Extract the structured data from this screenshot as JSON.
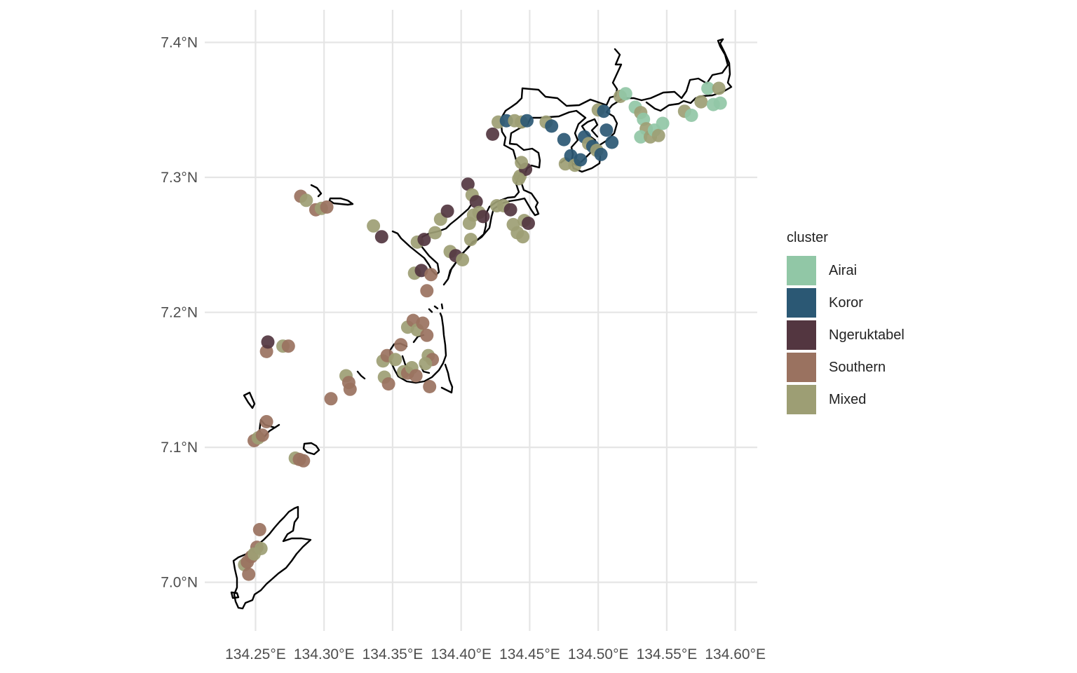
{
  "map": {
    "x_ticks": [
      "134.25°E",
      "134.30°E",
      "134.35°E",
      "134.40°E",
      "134.45°E",
      "134.50°E",
      "134.55°E",
      "134.60°E"
    ],
    "x_tick_values": [
      134.25,
      134.3,
      134.35,
      134.4,
      134.45,
      134.5,
      134.55,
      134.6
    ],
    "y_ticks": [
      "7.4°N",
      "7.3°N",
      "7.2°N",
      "7.1°N",
      "7.0°N"
    ],
    "y_tick_values": [
      7.4,
      7.3,
      7.2,
      7.1,
      7.0
    ],
    "xlim": [
      134.215,
      134.615
    ],
    "ylim": [
      6.965,
      7.42
    ]
  },
  "legend": {
    "title": "cluster",
    "items": [
      {
        "label": "Airai",
        "color": "#91c7a6"
      },
      {
        "label": "Koror",
        "color": "#2b5874"
      },
      {
        "label": "Ngeruktabel",
        "color": "#533640"
      },
      {
        "label": "Southern",
        "color": "#9a7260"
      },
      {
        "label": "Mixed",
        "color": "#9d9e74"
      }
    ]
  },
  "sites": [
    {
      "lon": 134.242,
      "lat": 7.013,
      "c": "Mixed"
    },
    {
      "lon": 134.244,
      "lat": 7.015,
      "c": "Southern"
    },
    {
      "lon": 134.247,
      "lat": 7.019,
      "c": "Southern"
    },
    {
      "lon": 134.251,
      "lat": 7.026,
      "c": "Southern"
    },
    {
      "lon": 134.254,
      "lat": 7.025,
      "c": "Mixed"
    },
    {
      "lon": 134.253,
      "lat": 7.039,
      "c": "Southern"
    },
    {
      "lon": 134.245,
      "lat": 7.006,
      "c": "Southern"
    },
    {
      "lon": 134.249,
      "lat": 7.021,
      "c": "Mixed"
    },
    {
      "lon": 134.249,
      "lat": 7.105,
      "c": "Southern"
    },
    {
      "lon": 134.252,
      "lat": 7.107,
      "c": "Mixed"
    },
    {
      "lon": 134.255,
      "lat": 7.109,
      "c": "Southern"
    },
    {
      "lon": 134.258,
      "lat": 7.119,
      "c": "Southern"
    },
    {
      "lon": 134.279,
      "lat": 7.092,
      "c": "Mixed"
    },
    {
      "lon": 134.282,
      "lat": 7.091,
      "c": "Southern"
    },
    {
      "lon": 134.285,
      "lat": 7.09,
      "c": "Southern"
    },
    {
      "lon": 134.258,
      "lat": 7.171,
      "c": "Southern"
    },
    {
      "lon": 134.259,
      "lat": 7.178,
      "c": "Ngeruktabel"
    },
    {
      "lon": 134.27,
      "lat": 7.175,
      "c": "Mixed"
    },
    {
      "lon": 134.274,
      "lat": 7.175,
      "c": "Southern"
    },
    {
      "lon": 134.305,
      "lat": 7.136,
      "c": "Southern"
    },
    {
      "lon": 134.316,
      "lat": 7.153,
      "c": "Mixed"
    },
    {
      "lon": 134.318,
      "lat": 7.148,
      "c": "Southern"
    },
    {
      "lon": 134.319,
      "lat": 7.143,
      "c": "Southern"
    },
    {
      "lon": 134.343,
      "lat": 7.164,
      "c": "Mixed"
    },
    {
      "lon": 134.346,
      "lat": 7.168,
      "c": "Southern"
    },
    {
      "lon": 134.344,
      "lat": 7.152,
      "c": "Mixed"
    },
    {
      "lon": 134.347,
      "lat": 7.147,
      "c": "Southern"
    },
    {
      "lon": 134.352,
      "lat": 7.165,
      "c": "Mixed"
    },
    {
      "lon": 134.356,
      "lat": 7.176,
      "c": "Southern"
    },
    {
      "lon": 134.358,
      "lat": 7.156,
      "c": "Mixed"
    },
    {
      "lon": 134.361,
      "lat": 7.155,
      "c": "Southern"
    },
    {
      "lon": 134.364,
      "lat": 7.159,
      "c": "Mixed"
    },
    {
      "lon": 134.367,
      "lat": 7.153,
      "c": "Southern"
    },
    {
      "lon": 134.361,
      "lat": 7.189,
      "c": "Mixed"
    },
    {
      "lon": 134.365,
      "lat": 7.194,
      "c": "Southern"
    },
    {
      "lon": 134.368,
      "lat": 7.187,
      "c": "Mixed"
    },
    {
      "lon": 134.372,
      "lat": 7.192,
      "c": "Southern"
    },
    {
      "lon": 134.375,
      "lat": 7.183,
      "c": "Southern"
    },
    {
      "lon": 134.376,
      "lat": 7.168,
      "c": "Mixed"
    },
    {
      "lon": 134.379,
      "lat": 7.165,
      "c": "Southern"
    },
    {
      "lon": 134.374,
      "lat": 7.162,
      "c": "Mixed"
    },
    {
      "lon": 134.377,
      "lat": 7.145,
      "c": "Southern"
    },
    {
      "lon": 134.283,
      "lat": 7.286,
      "c": "Southern"
    },
    {
      "lon": 134.287,
      "lat": 7.283,
      "c": "Mixed"
    },
    {
      "lon": 134.294,
      "lat": 7.276,
      "c": "Southern"
    },
    {
      "lon": 134.298,
      "lat": 7.277,
      "c": "Mixed"
    },
    {
      "lon": 134.302,
      "lat": 7.278,
      "c": "Southern"
    },
    {
      "lon": 134.336,
      "lat": 7.264,
      "c": "Mixed"
    },
    {
      "lon": 134.342,
      "lat": 7.256,
      "c": "Ngeruktabel"
    },
    {
      "lon": 134.366,
      "lat": 7.229,
      "c": "Mixed"
    },
    {
      "lon": 134.371,
      "lat": 7.231,
      "c": "Ngeruktabel"
    },
    {
      "lon": 134.375,
      "lat": 7.216,
      "c": "Southern"
    },
    {
      "lon": 134.378,
      "lat": 7.228,
      "c": "Southern"
    },
    {
      "lon": 134.368,
      "lat": 7.252,
      "c": "Mixed"
    },
    {
      "lon": 134.373,
      "lat": 7.254,
      "c": "Ngeruktabel"
    },
    {
      "lon": 134.381,
      "lat": 7.259,
      "c": "Mixed"
    },
    {
      "lon": 134.385,
      "lat": 7.269,
      "c": "Mixed"
    },
    {
      "lon": 134.39,
      "lat": 7.275,
      "c": "Ngeruktabel"
    },
    {
      "lon": 134.392,
      "lat": 7.245,
      "c": "Mixed"
    },
    {
      "lon": 134.396,
      "lat": 7.242,
      "c": "Ngeruktabel"
    },
    {
      "lon": 134.401,
      "lat": 7.239,
      "c": "Mixed"
    },
    {
      "lon": 134.405,
      "lat": 7.295,
      "c": "Ngeruktabel"
    },
    {
      "lon": 134.408,
      "lat": 7.287,
      "c": "Mixed"
    },
    {
      "lon": 134.411,
      "lat": 7.282,
      "c": "Ngeruktabel"
    },
    {
      "lon": 134.409,
      "lat": 7.272,
      "c": "Mixed"
    },
    {
      "lon": 134.413,
      "lat": 7.274,
      "c": "Mixed"
    },
    {
      "lon": 134.406,
      "lat": 7.266,
      "c": "Mixed"
    },
    {
      "lon": 134.407,
      "lat": 7.254,
      "c": "Mixed"
    },
    {
      "lon": 134.416,
      "lat": 7.271,
      "c": "Ngeruktabel"
    },
    {
      "lon": 134.426,
      "lat": 7.279,
      "c": "Mixed"
    },
    {
      "lon": 134.431,
      "lat": 7.279,
      "c": "Mixed"
    },
    {
      "lon": 134.436,
      "lat": 7.276,
      "c": "Ngeruktabel"
    },
    {
      "lon": 134.438,
      "lat": 7.265,
      "c": "Mixed"
    },
    {
      "lon": 134.441,
      "lat": 7.259,
      "c": "Mixed"
    },
    {
      "lon": 134.445,
      "lat": 7.256,
      "c": "Mixed"
    },
    {
      "lon": 134.446,
      "lat": 7.268,
      "c": "Mixed"
    },
    {
      "lon": 134.449,
      "lat": 7.266,
      "c": "Ngeruktabel"
    },
    {
      "lon": 134.443,
      "lat": 7.301,
      "c": "Mixed"
    },
    {
      "lon": 134.447,
      "lat": 7.306,
      "c": "Ngeruktabel"
    },
    {
      "lon": 134.444,
      "lat": 7.311,
      "c": "Mixed"
    },
    {
      "lon": 134.442,
      "lat": 7.299,
      "c": "Mixed"
    },
    {
      "lon": 134.423,
      "lat": 7.332,
      "c": "Ngeruktabel"
    },
    {
      "lon": 134.427,
      "lat": 7.341,
      "c": "Mixed"
    },
    {
      "lon": 134.433,
      "lat": 7.342,
      "c": "Koror"
    },
    {
      "lon": 134.439,
      "lat": 7.342,
      "c": "Mixed"
    },
    {
      "lon": 134.444,
      "lat": 7.341,
      "c": "Mixed"
    },
    {
      "lon": 134.448,
      "lat": 7.342,
      "c": "Koror"
    },
    {
      "lon": 134.462,
      "lat": 7.341,
      "c": "Mixed"
    },
    {
      "lon": 134.466,
      "lat": 7.338,
      "c": "Koror"
    },
    {
      "lon": 134.475,
      "lat": 7.328,
      "c": "Koror"
    },
    {
      "lon": 134.476,
      "lat": 7.31,
      "c": "Mixed"
    },
    {
      "lon": 134.48,
      "lat": 7.316,
      "c": "Koror"
    },
    {
      "lon": 134.483,
      "lat": 7.309,
      "c": "Mixed"
    },
    {
      "lon": 134.487,
      "lat": 7.313,
      "c": "Koror"
    },
    {
      "lon": 134.49,
      "lat": 7.33,
      "c": "Koror"
    },
    {
      "lon": 134.493,
      "lat": 7.325,
      "c": "Mixed"
    },
    {
      "lon": 134.496,
      "lat": 7.323,
      "c": "Koror"
    },
    {
      "lon": 134.499,
      "lat": 7.32,
      "c": "Mixed"
    },
    {
      "lon": 134.502,
      "lat": 7.317,
      "c": "Koror"
    },
    {
      "lon": 134.5,
      "lat": 7.35,
      "c": "Mixed"
    },
    {
      "lon": 134.504,
      "lat": 7.349,
      "c": "Koror"
    },
    {
      "lon": 134.506,
      "lat": 7.335,
      "c": "Koror"
    },
    {
      "lon": 134.51,
      "lat": 7.326,
      "c": "Koror"
    },
    {
      "lon": 134.516,
      "lat": 7.36,
      "c": "Mixed"
    },
    {
      "lon": 134.52,
      "lat": 7.362,
      "c": "Airai"
    },
    {
      "lon": 134.527,
      "lat": 7.352,
      "c": "Airai"
    },
    {
      "lon": 134.531,
      "lat": 7.348,
      "c": "Mixed"
    },
    {
      "lon": 134.533,
      "lat": 7.343,
      "c": "Airai"
    },
    {
      "lon": 134.535,
      "lat": 7.336,
      "c": "Mixed"
    },
    {
      "lon": 134.531,
      "lat": 7.33,
      "c": "Airai"
    },
    {
      "lon": 134.538,
      "lat": 7.33,
      "c": "Mixed"
    },
    {
      "lon": 134.541,
      "lat": 7.335,
      "c": "Airai"
    },
    {
      "lon": 134.544,
      "lat": 7.331,
      "c": "Mixed"
    },
    {
      "lon": 134.547,
      "lat": 7.34,
      "c": "Airai"
    },
    {
      "lon": 134.563,
      "lat": 7.349,
      "c": "Mixed"
    },
    {
      "lon": 134.568,
      "lat": 7.346,
      "c": "Airai"
    },
    {
      "lon": 134.575,
      "lat": 7.356,
      "c": "Mixed"
    },
    {
      "lon": 134.58,
      "lat": 7.366,
      "c": "Airai"
    },
    {
      "lon": 134.584,
      "lat": 7.354,
      "c": "Airai"
    },
    {
      "lon": 134.588,
      "lat": 7.366,
      "c": "Mixed"
    },
    {
      "lon": 134.589,
      "lat": 7.355,
      "c": "Airai"
    }
  ]
}
